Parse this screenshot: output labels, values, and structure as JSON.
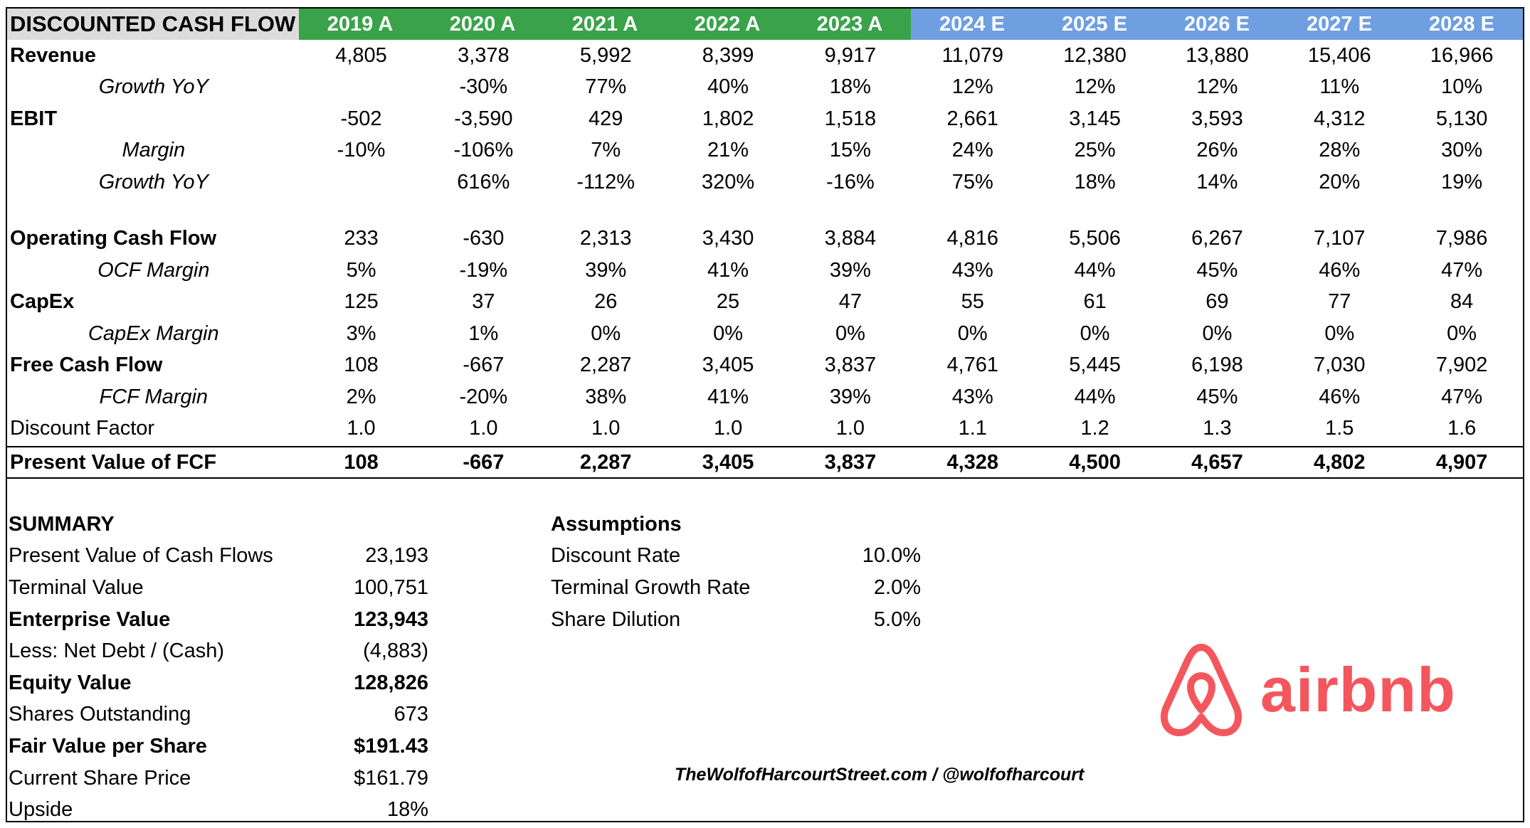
{
  "table": {
    "title": "DISCOUNTED CASH FLOW",
    "years": [
      {
        "label": "2019 A",
        "type": "actual"
      },
      {
        "label": "2020 A",
        "type": "actual"
      },
      {
        "label": "2021 A",
        "type": "actual"
      },
      {
        "label": "2022 A",
        "type": "actual"
      },
      {
        "label": "2023 A",
        "type": "actual"
      },
      {
        "label": "2024 E",
        "type": "estimate"
      },
      {
        "label": "2025 E",
        "type": "estimate"
      },
      {
        "label": "2026 E",
        "type": "estimate"
      },
      {
        "label": "2027 E",
        "type": "estimate"
      },
      {
        "label": "2028 E",
        "type": "estimate"
      }
    ],
    "rows": [
      {
        "label": "Revenue",
        "style": "main",
        "values": [
          "4,805",
          "3,378",
          "5,992",
          "8,399",
          "9,917",
          "11,079",
          "12,380",
          "13,880",
          "15,406",
          "16,966"
        ]
      },
      {
        "label": "Growth YoY",
        "style": "sub",
        "values": [
          "",
          "-30%",
          "77%",
          "40%",
          "18%",
          "12%",
          "12%",
          "12%",
          "11%",
          "10%"
        ]
      },
      {
        "label": "EBIT",
        "style": "main",
        "values": [
          "-502",
          "-3,590",
          "429",
          "1,802",
          "1,518",
          "2,661",
          "3,145",
          "3,593",
          "4,312",
          "5,130"
        ]
      },
      {
        "label": "Margin",
        "style": "sub",
        "values": [
          "-10%",
          "-106%",
          "7%",
          "21%",
          "15%",
          "24%",
          "25%",
          "26%",
          "28%",
          "30%"
        ]
      },
      {
        "label": "Growth YoY",
        "style": "sub",
        "values": [
          "",
          "616%",
          "-112%",
          "320%",
          "-16%",
          "75%",
          "18%",
          "14%",
          "20%",
          "19%"
        ]
      },
      {
        "label": "",
        "style": "spacer",
        "values": []
      },
      {
        "label": "Operating Cash Flow",
        "style": "main",
        "values": [
          "233",
          "-630",
          "2,313",
          "3,430",
          "3,884",
          "4,816",
          "5,506",
          "6,267",
          "7,107",
          "7,986"
        ]
      },
      {
        "label": "OCF Margin",
        "style": "sub",
        "values": [
          "5%",
          "-19%",
          "39%",
          "41%",
          "39%",
          "43%",
          "44%",
          "45%",
          "46%",
          "47%"
        ]
      },
      {
        "label": "CapEx",
        "style": "main",
        "values": [
          "125",
          "37",
          "26",
          "25",
          "47",
          "55",
          "61",
          "69",
          "77",
          "84"
        ]
      },
      {
        "label": "CapEx Margin",
        "style": "sub",
        "values": [
          "3%",
          "1%",
          "0%",
          "0%",
          "0%",
          "0%",
          "0%",
          "0%",
          "0%",
          "0%"
        ]
      },
      {
        "label": "Free Cash Flow",
        "style": "main",
        "values": [
          "108",
          "-667",
          "2,287",
          "3,405",
          "3,837",
          "4,761",
          "5,445",
          "6,198",
          "7,030",
          "7,902"
        ]
      },
      {
        "label": "FCF Margin",
        "style": "sub",
        "values": [
          "2%",
          "-20%",
          "38%",
          "41%",
          "39%",
          "43%",
          "44%",
          "45%",
          "46%",
          "47%"
        ]
      },
      {
        "label": "Discount Factor",
        "style": "plain",
        "values": [
          "1.0",
          "1.0",
          "1.0",
          "1.0",
          "1.0",
          "1.1",
          "1.2",
          "1.3",
          "1.5",
          "1.6"
        ]
      },
      {
        "label": "Present Value of FCF",
        "style": "pv",
        "values": [
          "108",
          "-667",
          "2,287",
          "3,405",
          "3,837",
          "4,328",
          "4,500",
          "4,657",
          "4,802",
          "4,907"
        ]
      }
    ]
  },
  "summary": {
    "title": "SUMMARY",
    "rows": [
      {
        "label": "Present Value of Cash Flows",
        "value": "23,193",
        "bold": false
      },
      {
        "label": "Terminal Value",
        "value": "100,751",
        "bold": false
      },
      {
        "label": "Enterprise Value",
        "value": "123,943",
        "bold": true
      },
      {
        "label": "Less: Net Debt / (Cash)",
        "value": "(4,883)",
        "bold": false
      },
      {
        "label": "Equity Value",
        "value": "128,826",
        "bold": true
      },
      {
        "label": "Shares Outstanding",
        "value": "673",
        "bold": false
      },
      {
        "label": "Fair Value per Share",
        "value": "$191.43",
        "bold": true
      },
      {
        "label": "Current Share Price",
        "value": "$161.79",
        "bold": false
      },
      {
        "label": "Upside",
        "value": "18%",
        "bold": false
      }
    ]
  },
  "assumptions": {
    "title": "Assumptions",
    "rows": [
      {
        "label": "Discount Rate",
        "value": "10.0%"
      },
      {
        "label": "Terminal Growth Rate",
        "value": "2.0%"
      },
      {
        "label": "Share Dilution",
        "value": "5.0%"
      }
    ]
  },
  "credit": "TheWolfofHarcourtStreet.com / @wolfofharcourt",
  "logo": {
    "text": "airbnb",
    "icon": "airbnb-belo-icon",
    "color": "#f4565e"
  },
  "colors": {
    "actual_header": "#3aa34a",
    "estimate_header": "#6f9fe0",
    "title_header": "#dcdcdc"
  }
}
